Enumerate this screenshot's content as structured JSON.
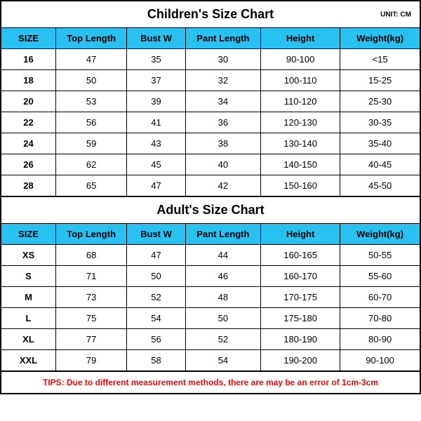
{
  "colors": {
    "header_bg": "#29c0f2",
    "border": "#000000",
    "footnote_text": "#ff0000",
    "background": "#ffffff"
  },
  "children_chart": {
    "title": "Children's Size Chart",
    "unit_label": "UNIT: CM",
    "columns": [
      "SIZE",
      "Top Length",
      "Bust W",
      "Pant Length",
      "Height",
      "Weight(kg)"
    ],
    "rows": [
      [
        "16",
        "47",
        "35",
        "30",
        "90-100",
        "<15"
      ],
      [
        "18",
        "50",
        "37",
        "32",
        "100-110",
        "15-25"
      ],
      [
        "20",
        "53",
        "39",
        "34",
        "110-120",
        "25-30"
      ],
      [
        "22",
        "56",
        "41",
        "36",
        "120-130",
        "30-35"
      ],
      [
        "24",
        "59",
        "43",
        "38",
        "130-140",
        "35-40"
      ],
      [
        "26",
        "62",
        "45",
        "40",
        "140-150",
        "40-45"
      ],
      [
        "28",
        "65",
        "47",
        "42",
        "150-160",
        "45-50"
      ]
    ]
  },
  "adult_chart": {
    "title": "Adult's Size Chart",
    "columns": [
      "SIZE",
      "Top Length",
      "Bust W",
      "Pant Length",
      "Height",
      "Weight(kg)"
    ],
    "rows": [
      [
        "XS",
        "68",
        "47",
        "44",
        "160-165",
        "50-55"
      ],
      [
        "S",
        "71",
        "50",
        "46",
        "160-170",
        "55-60"
      ],
      [
        "M",
        "73",
        "52",
        "48",
        "170-175",
        "60-70"
      ],
      [
        "L",
        "75",
        "54",
        "50",
        "175-180",
        "70-80"
      ],
      [
        "XL",
        "77",
        "56",
        "52",
        "180-190",
        "80-90"
      ],
      [
        "XXL",
        "79",
        "58",
        "54",
        "190-200",
        "90-100"
      ]
    ]
  },
  "footnote": "TIPS: Due to different measurement methods, there are may be an error of 1cm-3cm"
}
